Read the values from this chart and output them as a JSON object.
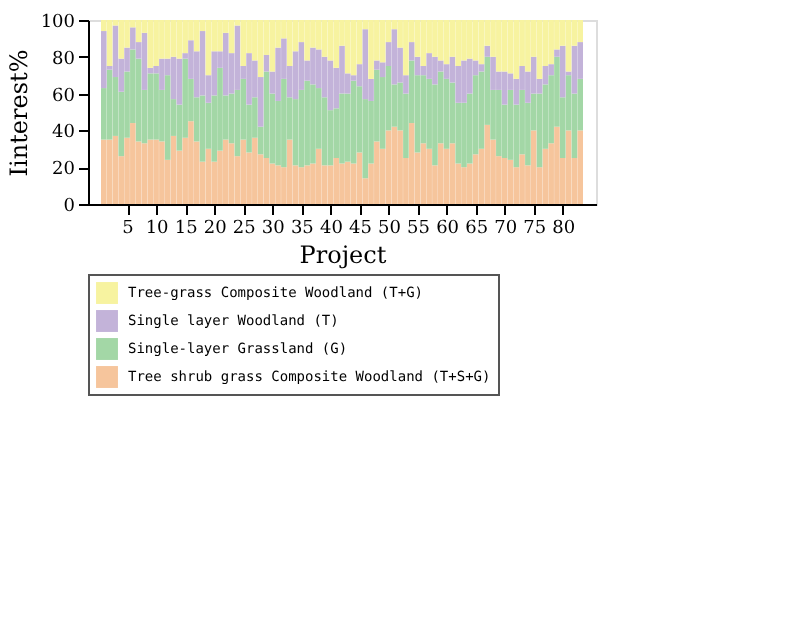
{
  "chart_data": {
    "type": "bar",
    "stacked": true,
    "xlabel": "Project",
    "ylabel": "Iinterest%",
    "x": [
      1,
      2,
      3,
      4,
      5,
      6,
      7,
      8,
      9,
      10,
      11,
      12,
      13,
      14,
      15,
      16,
      17,
      18,
      19,
      20,
      21,
      22,
      23,
      24,
      25,
      26,
      27,
      28,
      29,
      30,
      31,
      32,
      33,
      34,
      35,
      36,
      37,
      38,
      39,
      40,
      41,
      42,
      43,
      44,
      45,
      46,
      47,
      48,
      49,
      50,
      51,
      52,
      53,
      54,
      55,
      56,
      57,
      58,
      59,
      60,
      61,
      62,
      63,
      64,
      65,
      66,
      67,
      68,
      69,
      70,
      71,
      72,
      73,
      74,
      75,
      76,
      77,
      78,
      79,
      80,
      81,
      82,
      83
    ],
    "xlim": [
      0,
      84
    ],
    "xticks": [
      5,
      10,
      15,
      20,
      25,
      30,
      35,
      40,
      45,
      50,
      55,
      60,
      65,
      70,
      75,
      80
    ],
    "ylim": [
      0,
      100
    ],
    "yticks": [
      0,
      20,
      40,
      60,
      80,
      100
    ],
    "grid": false,
    "legend": "bottom",
    "series": [
      {
        "name": "Tree shrub grass Composite Woodland (T+S+G)",
        "color": "#f6c59c",
        "values": [
          35,
          35,
          37,
          26,
          36,
          44,
          34,
          33,
          35,
          35,
          34,
          24,
          37,
          29,
          36,
          45,
          34,
          23,
          30,
          23,
          29,
          35,
          33,
          26,
          35,
          28,
          36,
          27,
          25,
          22,
          21,
          20,
          35,
          21,
          20,
          21,
          22,
          30,
          21,
          21,
          25,
          22,
          23,
          22,
          28,
          14,
          22,
          34,
          30,
          40,
          42,
          40,
          25,
          44,
          28,
          33,
          30,
          21,
          33,
          30,
          33,
          22,
          20,
          22,
          27,
          30,
          43,
          35,
          26,
          25,
          24,
          20,
          27,
          21,
          40,
          20,
          30,
          33,
          42,
          25,
          40,
          25,
          40
        ]
      },
      {
        "name": "Single-layer Grassland (G)",
        "color": "#a3d7a6",
        "values": [
          28,
          38,
          32,
          35,
          36,
          40,
          45,
          29,
          36,
          36,
          28,
          46,
          20,
          25,
          43,
          23,
          24,
          36,
          25,
          36,
          45,
          24,
          27,
          36,
          33,
          26,
          22,
          15,
          47,
          38,
          35,
          48,
          23,
          36,
          42,
          46,
          43,
          33,
          37,
          30,
          27,
          38,
          37,
          45,
          36,
          43,
          34,
          39,
          39,
          35,
          23,
          26,
          35,
          34,
          42,
          37,
          38,
          44,
          39,
          38,
          33,
          33,
          35,
          38,
          43,
          42,
          37,
          27,
          36,
          29,
          38,
          34,
          35,
          34,
          20,
          40,
          35,
          37,
          38,
          33,
          30,
          35,
          28
        ]
      },
      {
        "name": "Single layer Woodland (T)",
        "color": "#c3b3d9",
        "values": [
          31,
          2,
          28,
          18,
          13,
          12,
          9,
          31,
          3,
          4,
          17,
          9,
          23,
          25,
          3,
          21,
          25,
          35,
          15,
          24,
          9,
          34,
          22,
          35,
          7,
          28,
          20,
          27,
          9,
          12,
          29,
          22,
          17,
          26,
          26,
          11,
          20,
          21,
          22,
          27,
          22,
          26,
          11,
          3,
          12,
          38,
          12,
          5,
          8,
          13,
          30,
          19,
          10,
          10,
          10,
          5,
          14,
          15,
          6,
          8,
          14,
          20,
          23,
          19,
          8,
          4,
          6,
          18,
          10,
          18,
          9,
          14,
          13,
          17,
          20,
          8,
          10,
          6,
          4,
          28,
          2,
          26,
          20
        ]
      },
      {
        "name": "Tree-grass Composite Woodland (T+G)",
        "color": "#f7f3a0",
        "values": [
          6,
          25,
          3,
          21,
          15,
          4,
          12,
          7,
          26,
          25,
          21,
          21,
          20,
          21,
          18,
          11,
          17,
          6,
          30,
          17,
          17,
          7,
          18,
          3,
          25,
          18,
          22,
          31,
          19,
          28,
          15,
          10,
          25,
          17,
          12,
          22,
          15,
          16,
          20,
          22,
          26,
          14,
          29,
          30,
          24,
          5,
          32,
          22,
          23,
          12,
          5,
          15,
          30,
          12,
          20,
          25,
          18,
          20,
          22,
          24,
          20,
          25,
          22,
          21,
          22,
          24,
          14,
          20,
          28,
          28,
          29,
          32,
          25,
          28,
          20,
          32,
          25,
          24,
          16,
          14,
          28,
          14,
          12
        ]
      }
    ]
  }
}
